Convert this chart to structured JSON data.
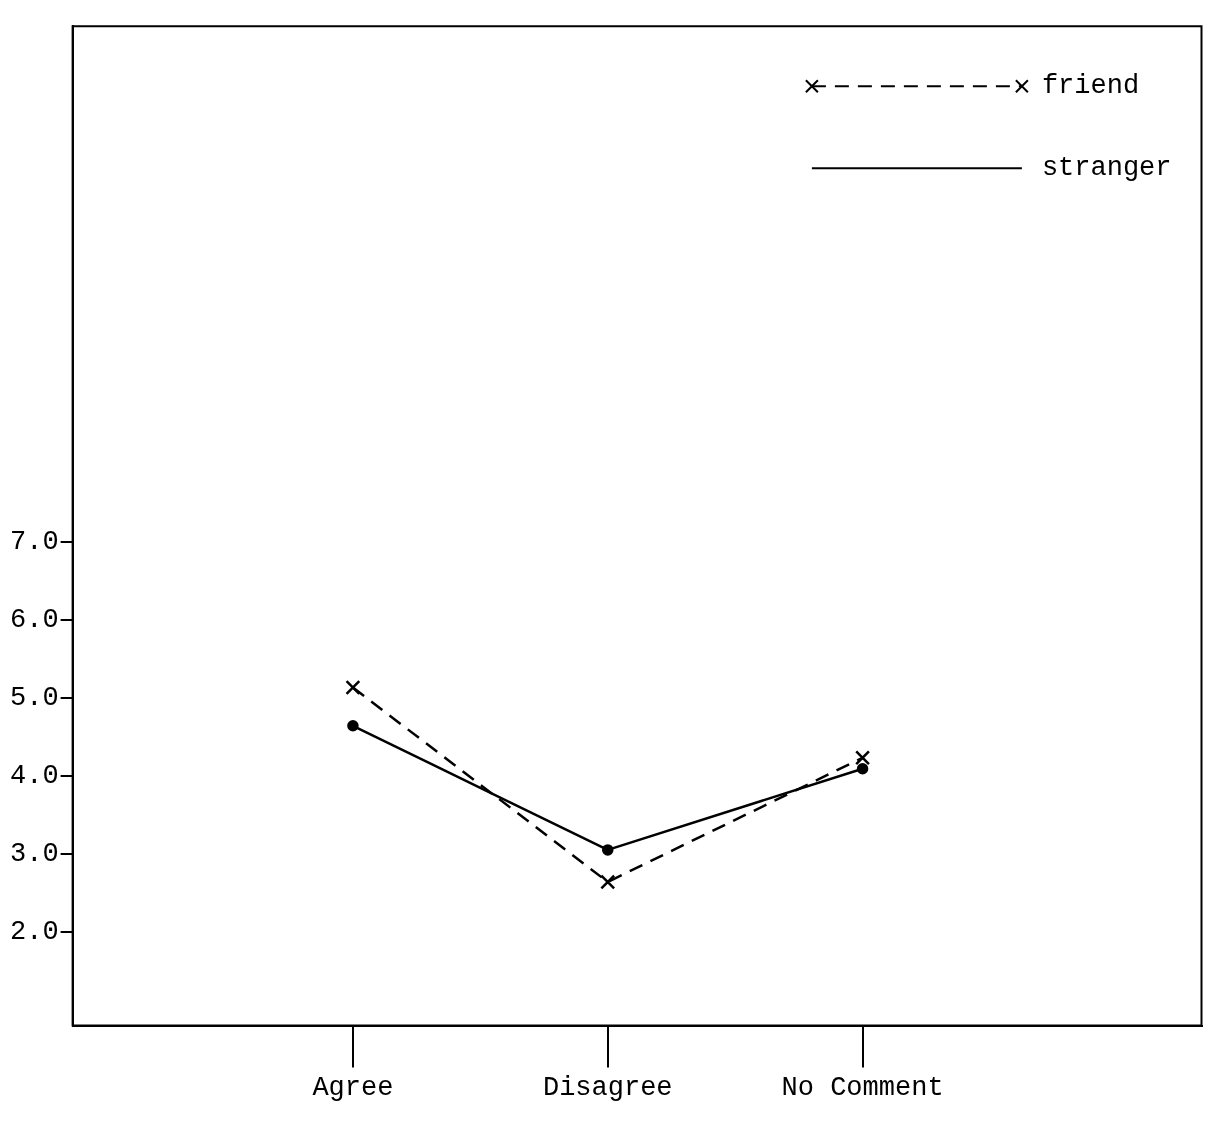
{
  "chart_data": {
    "type": "line",
    "categories": [
      "Agree",
      "Disagree",
      "No Comment"
    ],
    "series": [
      {
        "name": "friend",
        "color": "#000000",
        "values": [
          5.13,
          2.64,
          4.23
        ],
        "marker": "cross",
        "line_style": "dashed"
      },
      {
        "name": "stranger",
        "color": "#000000",
        "values": [
          4.64,
          3.05,
          4.09
        ],
        "marker": "circle",
        "line_style": "solid"
      }
    ],
    "ylim": [
      0.8,
      13.6
    ],
    "yticks": [
      {
        "value": 2,
        "label": "2.0"
      },
      {
        "value": 3,
        "label": "3.0"
      },
      {
        "value": 4,
        "label": "4.0"
      },
      {
        "value": 5,
        "label": "5.0"
      },
      {
        "value": 6,
        "label": "6.0"
      },
      {
        "value": 7,
        "label": "7.0"
      }
    ],
    "grid": false,
    "legend": "top right"
  }
}
